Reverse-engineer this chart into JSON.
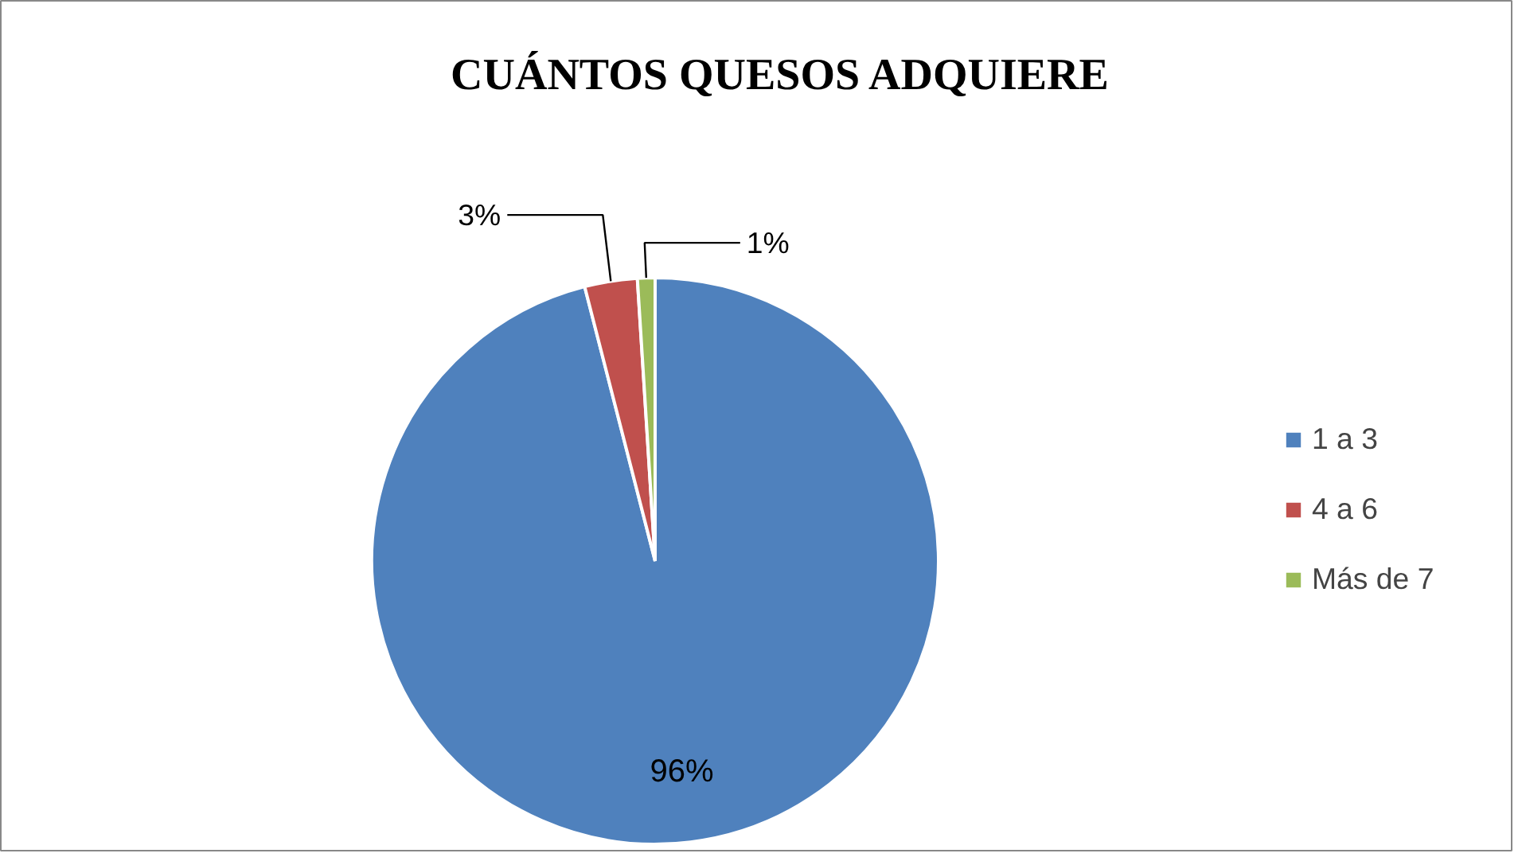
{
  "chart_data": {
    "type": "pie",
    "title": "CUÁNTOS QUESOS ADQUIERE",
    "categories": [
      "1 a 3",
      "4 a 6",
      "Más de 7"
    ],
    "values": [
      96,
      3,
      1
    ],
    "colors": [
      "#4f81bd",
      "#c0504d",
      "#9bbb59"
    ],
    "value_labels": [
      "96%",
      "3%",
      "1%"
    ],
    "legend": "right"
  }
}
